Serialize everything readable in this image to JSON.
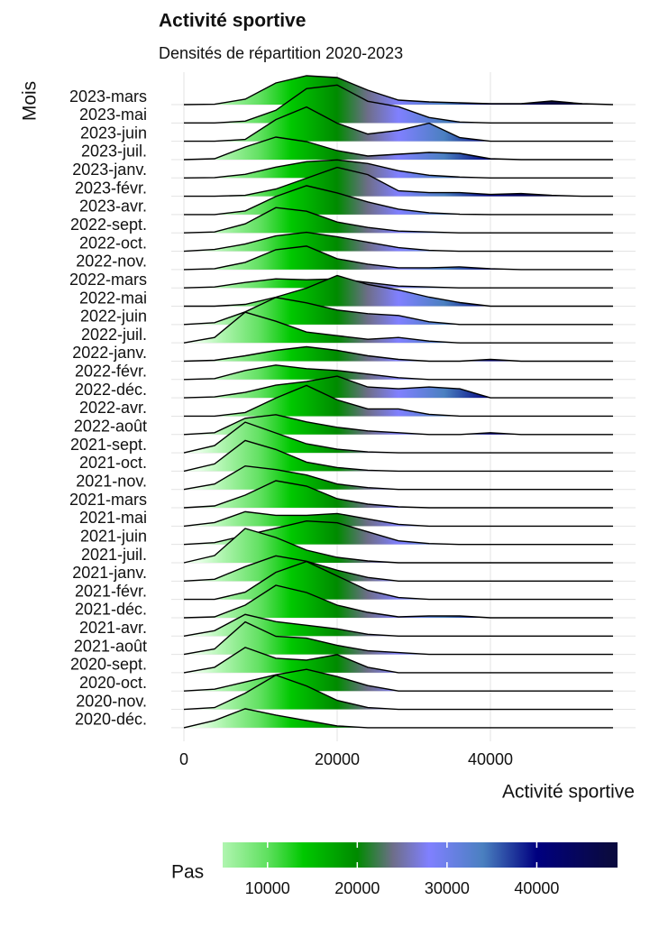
{
  "chart_data": {
    "type": "ridgeline",
    "title": "Activité sportive",
    "subtitle": "Densités de répartition 2020-2023",
    "xlabel": "Activité sportive",
    "ylabel": "Mois",
    "xlim": [
      -1000,
      56000
    ],
    "xticks": [
      0,
      20000,
      40000
    ],
    "grid": true,
    "x": [
      0,
      4000,
      8000,
      12000,
      16000,
      20000,
      24000,
      28000,
      32000,
      36000,
      40000,
      44000,
      48000,
      52000,
      56000
    ],
    "series": [
      {
        "name": "2023-mars",
        "values": [
          0,
          0.02,
          0.3,
          1.2,
          1.6,
          1.5,
          0.8,
          0.25,
          0.15,
          0.1,
          0.05,
          0.05,
          0.2,
          0.05,
          0
        ]
      },
      {
        "name": "2023-mai",
        "values": [
          0,
          0,
          0.1,
          0.7,
          1.9,
          2.1,
          1.2,
          0.9,
          0.3,
          0.05,
          0,
          0,
          0,
          0,
          0
        ]
      },
      {
        "name": "2023-juin",
        "values": [
          0,
          0,
          0.1,
          1.2,
          1.9,
          1.0,
          0.4,
          0.6,
          1.0,
          0.2,
          0,
          0,
          0,
          0,
          0
        ]
      },
      {
        "name": "2023-juil.",
        "values": [
          0,
          0.05,
          0.7,
          1.25,
          1.0,
          0.5,
          0.2,
          0.3,
          0.4,
          0.35,
          0.05,
          0,
          0,
          0,
          0
        ]
      },
      {
        "name": "2023-janv.",
        "values": [
          0,
          0.02,
          0.2,
          0.6,
          0.9,
          1.0,
          0.8,
          0.4,
          0.15,
          0.05,
          0,
          0,
          0,
          0,
          0
        ]
      },
      {
        "name": "2023-févr.",
        "values": [
          0,
          0,
          0.05,
          0.4,
          1.0,
          1.6,
          1.2,
          0.3,
          0.2,
          0.2,
          0.1,
          0.15,
          0.05,
          0,
          0
        ]
      },
      {
        "name": "2023-avr.",
        "values": [
          0,
          0,
          0.2,
          1.0,
          1.6,
          1.2,
          0.7,
          0.3,
          0.1,
          0.02,
          0,
          0,
          0,
          0,
          0
        ]
      },
      {
        "name": "2022-sept.",
        "values": [
          0,
          0.05,
          0.5,
          1.4,
          1.2,
          0.6,
          0.3,
          0.1,
          0.05,
          0,
          0,
          0,
          0,
          0,
          0
        ]
      },
      {
        "name": "2022-oct.",
        "values": [
          0,
          0.1,
          0.4,
          0.85,
          1.05,
          0.8,
          0.5,
          0.2,
          0.05,
          0,
          0,
          0,
          0,
          0,
          0
        ]
      },
      {
        "name": "2022-nov.",
        "values": [
          0,
          0.05,
          0.4,
          1.1,
          1.3,
          0.6,
          0.3,
          0.1,
          0.1,
          0.15,
          0.05,
          0,
          0,
          0,
          0
        ]
      },
      {
        "name": "2022-mars",
        "values": [
          0,
          0.05,
          0.3,
          0.5,
          0.45,
          0.5,
          0.3,
          0.1,
          0.05,
          0,
          0,
          0,
          0,
          0,
          0
        ]
      },
      {
        "name": "2022-mai",
        "values": [
          0,
          0,
          0.1,
          0.5,
          1.0,
          1.7,
          1.2,
          0.9,
          0.5,
          0.2,
          0,
          0,
          0,
          0,
          0
        ]
      },
      {
        "name": "2022-juin",
        "values": [
          0,
          0.1,
          0.7,
          1.5,
          1.2,
          0.8,
          0.6,
          0.5,
          0.15,
          0,
          0,
          0,
          0,
          0,
          0
        ]
      },
      {
        "name": "2022-juil.",
        "values": [
          0,
          0.3,
          1.7,
          1.2,
          0.6,
          0.4,
          0.2,
          0.3,
          0.1,
          0,
          0,
          0,
          0,
          0,
          0
        ]
      },
      {
        "name": "2022-janv.",
        "values": [
          0,
          0.05,
          0.3,
          0.6,
          0.8,
          0.6,
          0.3,
          0.1,
          0,
          0,
          0.1,
          0,
          0,
          0,
          0
        ]
      },
      {
        "name": "2022-févr.",
        "values": [
          0,
          0.05,
          0.5,
          0.8,
          0.6,
          0.5,
          0.3,
          0.1,
          0,
          0,
          0,
          0,
          0,
          0,
          0
        ]
      },
      {
        "name": "2022-déc.",
        "values": [
          0,
          0.05,
          0.3,
          0.7,
          0.9,
          1.2,
          0.6,
          0.5,
          0.6,
          0.5,
          0,
          0,
          0,
          0,
          0
        ]
      },
      {
        "name": "2022-avr.",
        "values": [
          0,
          0,
          0.2,
          1.0,
          1.7,
          0.9,
          0.4,
          0.4,
          0.1,
          0,
          0,
          0,
          0,
          0,
          0
        ]
      },
      {
        "name": "2022-août",
        "values": [
          0,
          0.1,
          0.9,
          1.1,
          0.7,
          0.4,
          0.2,
          0.1,
          0,
          0,
          0.1,
          0,
          0,
          0,
          0
        ]
      },
      {
        "name": "2021-sept.",
        "values": [
          0,
          0.4,
          1.7,
          1.1,
          0.5,
          0.2,
          0.05,
          0,
          0,
          0,
          0,
          0,
          0,
          0,
          0
        ]
      },
      {
        "name": "2021-oct.",
        "values": [
          0,
          0.4,
          1.7,
          1.2,
          0.5,
          0.2,
          0.05,
          0,
          0,
          0,
          0,
          0,
          0,
          0,
          0
        ]
      },
      {
        "name": "2021-nov.",
        "values": [
          0,
          0.3,
          1.3,
          1.1,
          0.8,
          0.3,
          0.1,
          0,
          0,
          0,
          0,
          0,
          0,
          0,
          0
        ]
      },
      {
        "name": "2021-mars",
        "values": [
          0,
          0.1,
          0.7,
          1.5,
          1.2,
          0.5,
          0.2,
          0.05,
          0,
          0,
          0,
          0,
          0,
          0,
          0
        ]
      },
      {
        "name": "2021-mai",
        "values": [
          0,
          0.2,
          0.8,
          0.6,
          0.6,
          0.7,
          0.4,
          0.1,
          0,
          0,
          0,
          0,
          0,
          0,
          0
        ]
      },
      {
        "name": "2021-juin",
        "values": [
          0,
          0.1,
          0.5,
          0.9,
          1.3,
          1.2,
          0.7,
          0.2,
          0.05,
          0,
          0,
          0,
          0,
          0,
          0
        ]
      },
      {
        "name": "2021-juil.",
        "values": [
          0,
          0.4,
          1.9,
          1.4,
          0.7,
          0.3,
          0.1,
          0,
          0,
          0,
          0,
          0,
          0,
          0,
          0
        ]
      },
      {
        "name": "2021-janv.",
        "values": [
          0,
          0.1,
          0.8,
          1.4,
          1.1,
          0.6,
          0.2,
          0,
          0,
          0,
          0,
          0,
          0,
          0,
          0
        ]
      },
      {
        "name": "2021-févr.",
        "values": [
          0,
          0,
          0.4,
          1.5,
          2.1,
          1.3,
          0.5,
          0.1,
          0,
          0,
          0,
          0,
          0,
          0,
          0
        ]
      },
      {
        "name": "2021-déc.",
        "values": [
          0,
          0.05,
          0.7,
          1.8,
          1.4,
          0.7,
          0.3,
          0.05,
          0.1,
          0.1,
          0,
          0,
          0,
          0,
          0
        ]
      },
      {
        "name": "2021-avr.",
        "values": [
          0,
          0.3,
          1.2,
          0.8,
          0.6,
          0.4,
          0.1,
          0,
          0,
          0,
          0,
          0,
          0,
          0,
          0
        ]
      },
      {
        "name": "2021-août",
        "values": [
          0,
          0.3,
          1.8,
          1.0,
          0.9,
          0.5,
          0.2,
          0.1,
          0,
          0,
          0,
          0,
          0,
          0,
          0
        ]
      },
      {
        "name": "2020-sept.",
        "values": [
          0,
          0.3,
          1.4,
          0.8,
          0.7,
          1.0,
          0.3,
          0,
          0,
          0,
          0,
          0,
          0,
          0,
          0
        ]
      },
      {
        "name": "2020-oct.",
        "values": [
          0,
          0.1,
          0.5,
          0.9,
          1.2,
          0.8,
          0.3,
          0,
          0,
          0,
          0,
          0,
          0,
          0,
          0
        ]
      },
      {
        "name": "2020-nov.",
        "values": [
          0,
          0.1,
          0.9,
          1.9,
          1.3,
          0.5,
          0.1,
          0,
          0,
          0,
          0,
          0,
          0,
          0,
          0
        ]
      },
      {
        "name": "2020-déc.",
        "values": [
          0,
          0.4,
          1.05,
          0.7,
          0.4,
          0.1,
          0,
          0,
          0,
          0,
          0,
          0,
          0,
          0,
          0
        ]
      }
    ],
    "fill_scale": {
      "values": [
        2000,
        5000,
        10000,
        14000,
        20000,
        24000,
        28000,
        34000,
        40000,
        48000
      ],
      "colors": [
        "#e6ffe6",
        "#b0f5b0",
        "#5fe05f",
        "#00c800",
        "#008a00",
        "#6e6e8a",
        "#8080ff",
        "#4a80c0",
        "#000080",
        "#0a0a40"
      ]
    },
    "legend": {
      "title": "Pas",
      "ticks": [
        10000,
        20000,
        30000,
        40000
      ],
      "lim": [
        5000,
        49000
      ]
    }
  }
}
